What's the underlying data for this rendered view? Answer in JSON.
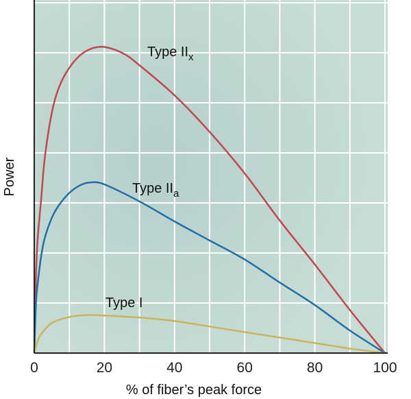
{
  "chart_data": {
    "type": "line",
    "title": "",
    "xlabel": "% of fiber’s peak force",
    "ylabel": "Power",
    "xlim": [
      0,
      100
    ],
    "ylim": [
      0,
      7
    ],
    "grid": true,
    "x_ticks": [
      "0",
      "20",
      "40",
      "60",
      "80",
      "100"
    ],
    "x_tick_values": [
      0,
      20,
      40,
      60,
      80,
      100
    ],
    "colors": {
      "background": "#c3d9d3",
      "grid": "#ffffff",
      "axis": "#222222"
    },
    "series": [
      {
        "name": "Type IIx",
        "label_main": "Type II",
        "label_sub": "x",
        "color": "#c0464f",
        "x": [
          0,
          0.5,
          1,
          2,
          3,
          5,
          7,
          10,
          14,
          19,
          25,
          30,
          40,
          50,
          60,
          70,
          80,
          90,
          100
        ],
        "y": [
          0,
          1.6,
          2.3,
          3.1,
          3.9,
          4.8,
          5.3,
          5.7,
          6.0,
          6.12,
          6.0,
          5.75,
          5.15,
          4.42,
          3.59,
          2.65,
          1.77,
          0.86,
          0
        ]
      },
      {
        "name": "Type IIa",
        "label_main": "Type II",
        "label_sub": "a",
        "color": "#1f6fa8",
        "x": [
          0,
          0.5,
          1,
          2,
          3,
          5,
          7,
          10,
          13,
          16,
          20,
          30,
          40,
          50,
          60,
          70,
          80,
          90,
          100
        ],
        "y": [
          0,
          1.0,
          1.4,
          1.95,
          2.3,
          2.7,
          2.95,
          3.2,
          3.35,
          3.41,
          3.37,
          3.03,
          2.63,
          2.25,
          1.87,
          1.41,
          0.96,
          0.45,
          0
        ]
      },
      {
        "name": "Type I",
        "label_main": "Type I",
        "label_sub": "",
        "color": "#c9b45a",
        "x": [
          0,
          1,
          2,
          5,
          10,
          15,
          20,
          30,
          40,
          50,
          60,
          70,
          80,
          90,
          100
        ],
        "y": [
          0,
          0.25,
          0.38,
          0.6,
          0.72,
          0.76,
          0.75,
          0.71,
          0.64,
          0.53,
          0.42,
          0.31,
          0.2,
          0.09,
          0
        ]
      }
    ]
  }
}
